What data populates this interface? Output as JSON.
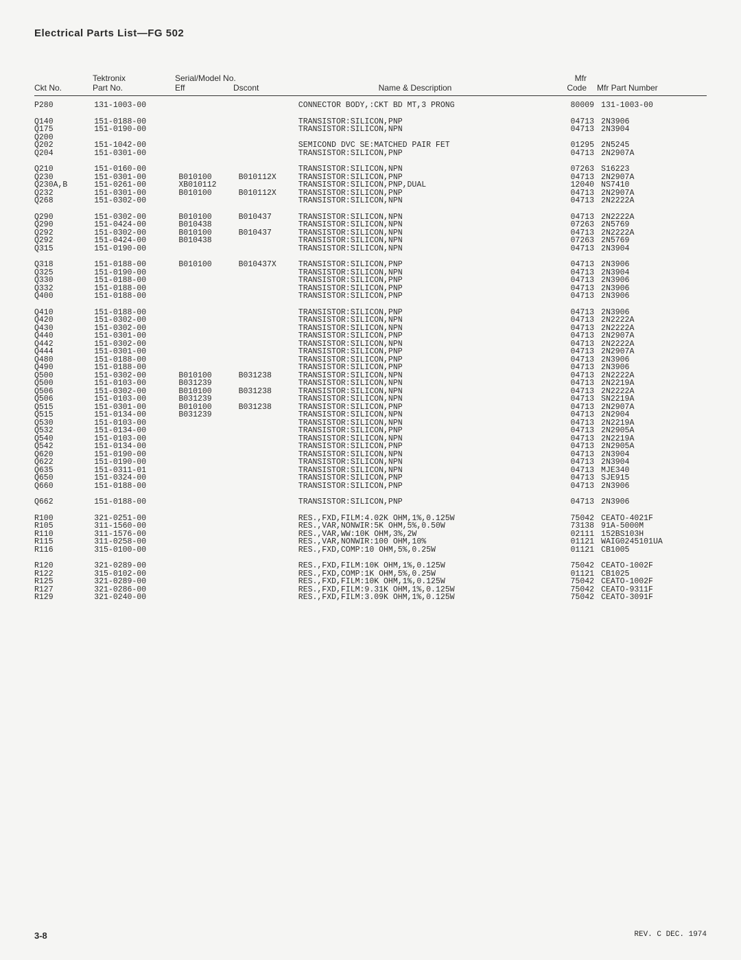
{
  "title": "Electrical Parts List—FG 502",
  "headers": {
    "tektronix": "Tektronix",
    "serial": "Serial/Model No.",
    "mfr_top": "Mfr",
    "ckt": "Ckt No.",
    "part": "Part No.",
    "eff": "Eff",
    "dscont": "Dscont",
    "desc": "Name & Description",
    "code": "Code",
    "mfr": "Mfr Part Number"
  },
  "footer": {
    "page": "3-8",
    "rev": "REV. C DEC. 1974"
  },
  "rows": [
    {
      "ckt": "P280",
      "part": "131-1003-00",
      "eff": "",
      "dscont": "",
      "desc": "CONNECTOR BODY,:CKT BD MT,3 PRONG",
      "code": "80009",
      "mfr": "131-1003-00"
    },
    {
      "gap": true
    },
    {
      "ckt": "Q140",
      "part": "151-0188-00",
      "eff": "",
      "dscont": "",
      "desc": "TRANSISTOR:SILICON,PNP",
      "code": "04713",
      "mfr": "2N3906"
    },
    {
      "ckt": "Q175",
      "part": "151-0190-00",
      "eff": "",
      "dscont": "",
      "desc": "TRANSISTOR:SILICON,NPN",
      "code": "04713",
      "mfr": "2N3904"
    },
    {
      "ckt": "Q200",
      "part": "",
      "eff": "",
      "dscont": "",
      "desc": "",
      "code": "",
      "mfr": ""
    },
    {
      "ckt": "Q202",
      "part": "151-1042-00",
      "eff": "",
      "dscont": "",
      "desc": "SEMICOND DVC SE:MATCHED PAIR FET",
      "code": "01295",
      "mfr": "2N5245"
    },
    {
      "ckt": "Q204",
      "part": "151-0301-00",
      "eff": "",
      "dscont": "",
      "desc": "TRANSISTOR:SILICON,PNP",
      "code": "04713",
      "mfr": "2N2907A"
    },
    {
      "gap": true
    },
    {
      "ckt": "Q210",
      "part": "151-0160-00",
      "eff": "",
      "dscont": "",
      "desc": "TRANSISTOR:SILICON,NPN",
      "code": "07263",
      "mfr": "S16223"
    },
    {
      "ckt": "Q230",
      "part": "151-0301-00",
      "eff": "B010100",
      "dscont": "B010112X",
      "desc": "TRANSISTOR:SILICON,PNP",
      "code": "04713",
      "mfr": "2N2907A"
    },
    {
      "ckt": "Q230A,B",
      "part": "151-0261-00",
      "eff": "XB010112",
      "dscont": "",
      "desc": "TRANSISTOR:SILICON,PNP,DUAL",
      "code": "12040",
      "mfr": "NS7410"
    },
    {
      "ckt": "Q232",
      "part": "151-0301-00",
      "eff": "B010100",
      "dscont": "B010112X",
      "desc": "TRANSISTOR:SILICON,PNP",
      "code": "04713",
      "mfr": "2N2907A"
    },
    {
      "ckt": "Q268",
      "part": "151-0302-00",
      "eff": "",
      "dscont": "",
      "desc": "TRANSISTOR:SILICON,NPN",
      "code": "04713",
      "mfr": "2N2222A"
    },
    {
      "gap": true
    },
    {
      "ckt": "Q290",
      "part": "151-0302-00",
      "eff": "B010100",
      "dscont": "B010437",
      "desc": "TRANSISTOR:SILICON,NPN",
      "code": "04713",
      "mfr": "2N2222A"
    },
    {
      "ckt": "Q290",
      "part": "151-0424-00",
      "eff": "B010438",
      "dscont": "",
      "desc": "TRANSISTOR:SILICON,NPN",
      "code": "07263",
      "mfr": "2N5769"
    },
    {
      "ckt": "Q292",
      "part": "151-0302-00",
      "eff": "B010100",
      "dscont": "B010437",
      "desc": "TRANSISTOR:SILICON,NPN",
      "code": "04713",
      "mfr": "2N2222A"
    },
    {
      "ckt": "Q292",
      "part": "151-0424-00",
      "eff": "B010438",
      "dscont": "",
      "desc": "TRANSISTOR:SILICON,NPN",
      "code": "07263",
      "mfr": "2N5769"
    },
    {
      "ckt": "Q315",
      "part": "151-0190-00",
      "eff": "",
      "dscont": "",
      "desc": "TRANSISTOR:SILICON,NPN",
      "code": "04713",
      "mfr": "2N3904"
    },
    {
      "gap": true
    },
    {
      "ckt": "Q318",
      "part": "151-0188-00",
      "eff": "B010100",
      "dscont": "B010437X",
      "desc": "TRANSISTOR:SILICON,PNP",
      "code": "04713",
      "mfr": "2N3906"
    },
    {
      "ckt": "Q325",
      "part": "151-0190-00",
      "eff": "",
      "dscont": "",
      "desc": "TRANSISTOR:SILICON,NPN",
      "code": "04713",
      "mfr": "2N3904"
    },
    {
      "ckt": "Q330",
      "part": "151-0188-00",
      "eff": "",
      "dscont": "",
      "desc": "TRANSISTOR:SILICON,PNP",
      "code": "04713",
      "mfr": "2N3906"
    },
    {
      "ckt": "Q332",
      "part": "151-0188-00",
      "eff": "",
      "dscont": "",
      "desc": "TRANSISTOR:SILICON,PNP",
      "code": "04713",
      "mfr": "2N3906"
    },
    {
      "ckt": "Q400",
      "part": "151-0188-00",
      "eff": "",
      "dscont": "",
      "desc": "TRANSISTOR:SILICON,PNP",
      "code": "04713",
      "mfr": "2N3906"
    },
    {
      "gap": true
    },
    {
      "ckt": "Q410",
      "part": "151-0188-00",
      "eff": "",
      "dscont": "",
      "desc": "TRANSISTOR:SILICON,PNP",
      "code": "04713",
      "mfr": "2N3906"
    },
    {
      "ckt": "Q420",
      "part": "151-0302-00",
      "eff": "",
      "dscont": "",
      "desc": "TRANSISTOR:SILICON,NPN",
      "code": "04713",
      "mfr": "2N2222A"
    },
    {
      "ckt": "Q430",
      "part": "151-0302-00",
      "eff": "",
      "dscont": "",
      "desc": "TRANSISTOR:SILICON,NPN",
      "code": "04713",
      "mfr": "2N2222A"
    },
    {
      "ckt": "Q440",
      "part": "151-0301-00",
      "eff": "",
      "dscont": "",
      "desc": "TRANSISTOR:SILICON,PNP",
      "code": "04713",
      "mfr": "2N2907A"
    },
    {
      "ckt": "Q442",
      "part": "151-0302-00",
      "eff": "",
      "dscont": "",
      "desc": "TRANSISTOR:SILICON,NPN",
      "code": "04713",
      "mfr": "2N2222A"
    },
    {
      "ckt": "Q444",
      "part": "151-0301-00",
      "eff": "",
      "dscont": "",
      "desc": "TRANSISTOR:SILICON,PNP",
      "code": "04713",
      "mfr": "2N2907A"
    },
    {
      "ckt": "Q480",
      "part": "151-0188-00",
      "eff": "",
      "dscont": "",
      "desc": "TRANSISTOR:SILICON,PNP",
      "code": "04713",
      "mfr": "2N3906"
    },
    {
      "ckt": "Q490",
      "part": "151-0188-00",
      "eff": "",
      "dscont": "",
      "desc": "TRANSISTOR:SILICON,PNP",
      "code": "04713",
      "mfr": "2N3906"
    },
    {
      "ckt": "Q500",
      "part": "151-0302-00",
      "eff": "B010100",
      "dscont": "B031238",
      "desc": "TRANSISTOR:SILICON,NPN",
      "code": "04713",
      "mfr": "2N2222A"
    },
    {
      "ckt": "Q500",
      "part": "151-0103-00",
      "eff": "B031239",
      "dscont": "",
      "desc": "TRANSISTOR:SILICON,NPN",
      "code": "04713",
      "mfr": "2N2219A"
    },
    {
      "ckt": "Q506",
      "part": "151-0302-00",
      "eff": "B010100",
      "dscont": "B031238",
      "desc": "TRANSISTOR:SILICON,NPN",
      "code": "04713",
      "mfr": "2N2222A"
    },
    {
      "ckt": "Q506",
      "part": "151-0103-00",
      "eff": "B031239",
      "dscont": "",
      "desc": "TRANSISTOR:SILICON,NPN",
      "code": "04713",
      "mfr": "SN2219A"
    },
    {
      "ckt": "Q515",
      "part": "151-0301-00",
      "eff": "B010100",
      "dscont": "B031238",
      "desc": "TRANSISTOR:SILICON,PNP",
      "code": "04713",
      "mfr": "2N2907A"
    },
    {
      "ckt": "Q515",
      "part": "151-0134-00",
      "eff": "B031239",
      "dscont": "",
      "desc": "TRANSISTOR:SILICON,NPN",
      "code": "04713",
      "mfr": "2N2904"
    },
    {
      "ckt": "Q530",
      "part": "151-0103-00",
      "eff": "",
      "dscont": "",
      "desc": "TRANSISTOR:SILICON,NPN",
      "code": "04713",
      "mfr": "2N2219A"
    },
    {
      "ckt": "Q532",
      "part": "151-0134-00",
      "eff": "",
      "dscont": "",
      "desc": "TRANSISTOR:SILICON,PNP",
      "code": "04713",
      "mfr": "2N2905A"
    },
    {
      "ckt": "Q540",
      "part": "151-0103-00",
      "eff": "",
      "dscont": "",
      "desc": "TRANSISTOR:SILICON,NPN",
      "code": "04713",
      "mfr": "2N2219A"
    },
    {
      "ckt": "Q542",
      "part": "151-0134-00",
      "eff": "",
      "dscont": "",
      "desc": "TRANSISTOR:SILICON,PNP",
      "code": "04713",
      "mfr": "2N2905A"
    },
    {
      "ckt": "Q620",
      "part": "151-0190-00",
      "eff": "",
      "dscont": "",
      "desc": "TRANSISTOR:SILICON,NPN",
      "code": "04713",
      "mfr": "2N3904"
    },
    {
      "ckt": "Q622",
      "part": "151-0190-00",
      "eff": "",
      "dscont": "",
      "desc": "TRANSISTOR:SILICON,NPN",
      "code": "04713",
      "mfr": "2N3904"
    },
    {
      "ckt": "Q635",
      "part": "151-0311-01",
      "eff": "",
      "dscont": "",
      "desc": "TRANSISTOR:SILICON,NPN",
      "code": "04713",
      "mfr": "MJE340"
    },
    {
      "ckt": "Q650",
      "part": "151-0324-00",
      "eff": "",
      "dscont": "",
      "desc": "TRANSISTOR:SILICON,PNP",
      "code": "04713",
      "mfr": "SJE915"
    },
    {
      "ckt": "Q660",
      "part": "151-0188-00",
      "eff": "",
      "dscont": "",
      "desc": "TRANSISTOR:SILICON,PNP",
      "code": "04713",
      "mfr": "2N3906"
    },
    {
      "gap": true
    },
    {
      "ckt": "Q662",
      "part": "151-0188-00",
      "eff": "",
      "dscont": "",
      "desc": "TRANSISTOR:SILICON,PNP",
      "code": "04713",
      "mfr": "2N3906"
    },
    {
      "gap": true
    },
    {
      "ckt": "R100",
      "part": "321-0251-00",
      "eff": "",
      "dscont": "",
      "desc": "RES.,FXD,FILM:4.02K OHM,1%,0.125W",
      "code": "75042",
      "mfr": "CEATO-4021F"
    },
    {
      "ckt": "R105",
      "part": "311-1560-00",
      "eff": "",
      "dscont": "",
      "desc": "RES.,VAR,NONWIR:5K OHM,5%,0.50W",
      "code": "73138",
      "mfr": "91A-5000M"
    },
    {
      "ckt": "R110",
      "part": "311-1576-00",
      "eff": "",
      "dscont": "",
      "desc": "RES.,VAR,WW:10K OHM,3%,2W",
      "code": "02111",
      "mfr": "152BS103H"
    },
    {
      "ckt": "R115",
      "part": "311-0258-00",
      "eff": "",
      "dscont": "",
      "desc": "RES.,VAR,NONWIR:100 OHM,10%",
      "code": "01121",
      "mfr": "WAIG0245101UA"
    },
    {
      "ckt": "R116",
      "part": "315-0100-00",
      "eff": "",
      "dscont": "",
      "desc": "RES.,FXD,COMP:10 OHM,5%,0.25W",
      "code": "01121",
      "mfr": "CB1005"
    },
    {
      "gap": true
    },
    {
      "ckt": "R120",
      "part": "321-0289-00",
      "eff": "",
      "dscont": "",
      "desc": "RES.,FXD,FILM:10K OHM,1%,0.125W",
      "code": "75042",
      "mfr": "CEATO-1002F"
    },
    {
      "ckt": "R122",
      "part": "315-0102-00",
      "eff": "",
      "dscont": "",
      "desc": "RES.,FXD,COMP:1K OHM,5%,0.25W",
      "code": "01121",
      "mfr": "CB1025"
    },
    {
      "ckt": "R125",
      "part": "321-0289-00",
      "eff": "",
      "dscont": "",
      "desc": "RES.,FXD,FILM:10K OHM,1%,0.125W",
      "code": "75042",
      "mfr": "CEATO-1002F"
    },
    {
      "ckt": "R127",
      "part": "321-0286-00",
      "eff": "",
      "dscont": "",
      "desc": "RES.,FXD,FILM:9.31K OHM,1%,0.125W",
      "code": "75042",
      "mfr": "CEATO-9311F"
    },
    {
      "ckt": "R129",
      "part": "321-0240-00",
      "eff": "",
      "dscont": "",
      "desc": "RES.,FXD,FILM:3.09K OHM,1%,0.125W",
      "code": "75042",
      "mfr": "CEATO-3091F"
    }
  ]
}
